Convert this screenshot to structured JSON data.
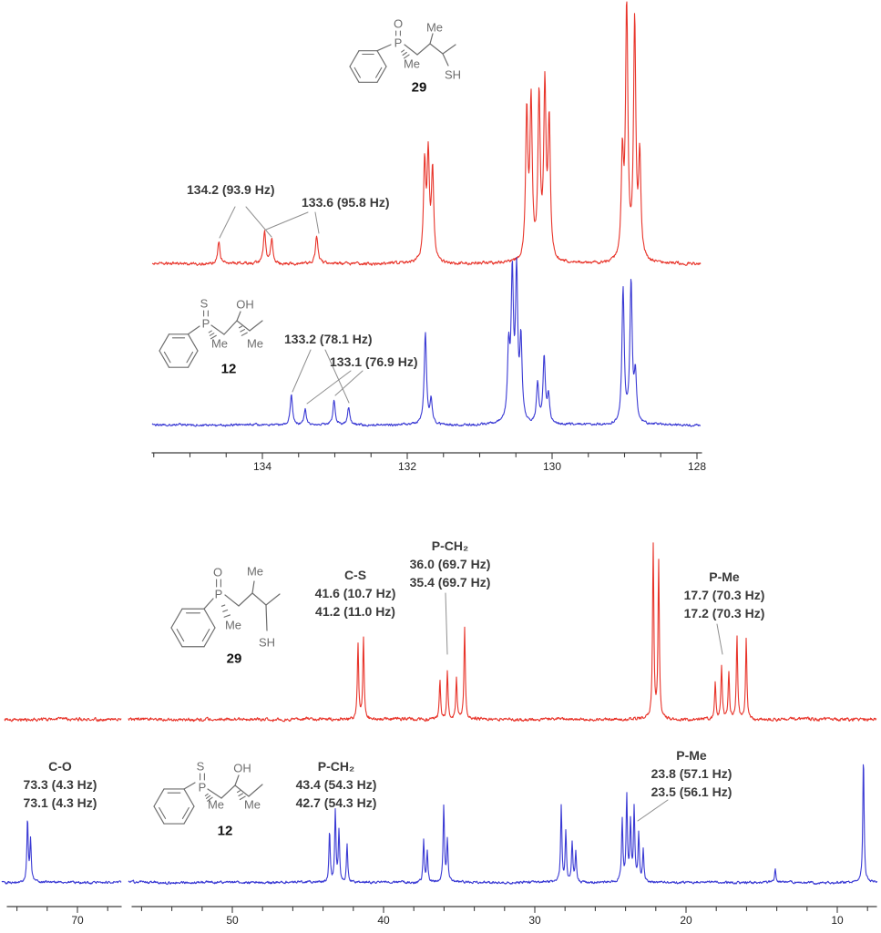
{
  "figure": {
    "background": "#ffffff",
    "kind": "13C NMR spectra overlay, aromatic and aliphatic regions"
  },
  "colors": {
    "red_series": "#e8342a",
    "blue_series": "#3a3ad4",
    "annotation_text": "#3a3a3a",
    "pointer_line": "#8f8f8f",
    "axis": "#3c3c3c",
    "structure": "#6e6e6e",
    "compound_number": "#111111"
  },
  "structures": {
    "compound29": {
      "number": "29",
      "atom_labels": {
        "o": "O",
        "me_top": "Me",
        "p": "P",
        "me_p": "Me",
        "sh": "SH"
      }
    },
    "compound12": {
      "number": "12",
      "atom_labels": {
        "s": "S",
        "oh": "OH",
        "p": "P",
        "me_p": "Me",
        "me_c": "Me"
      }
    }
  },
  "annotations": {
    "aromatic_red_1": "134.2 (93.9 Hz)",
    "aromatic_red_2": "133.6 (95.8 Hz)",
    "aromatic_blue_1": "133.2 (78.1 Hz)",
    "aromatic_blue_2": "133.1 (76.9 Hz)",
    "aliphatic_red_cs": {
      "title": "C-S",
      "line1": "41.6 (10.7 Hz)",
      "line2": "41.2 (11.0 Hz)"
    },
    "aliphatic_red_pch2": {
      "title": "P-CH₂",
      "line1": "36.0 (69.7 Hz)",
      "line2": "35.4 (69.7 Hz)"
    },
    "aliphatic_red_pme": {
      "title": "P-Me",
      "line1": "17.7 (70.3 Hz)",
      "line2": "17.2 (70.3 Hz)"
    },
    "aliphatic_blue_co": {
      "title": "C-O",
      "line1": "73.3 (4.3 Hz)",
      "line2": "73.1 (4.3 Hz)"
    },
    "aliphatic_blue_pch2": {
      "title": "P-CH₂",
      "line1": "43.4 (54.3 Hz)",
      "line2": "42.7 (54.3 Hz)"
    },
    "aliphatic_blue_pme": {
      "title": "P-Me",
      "line1": "23.8 (57.1 Hz)",
      "line2": "23.5 (56.1 Hz)"
    }
  },
  "chart_data": [
    {
      "id": "aromatic_region",
      "type": "line",
      "description": "Aromatic region overlay: compound 29 (red, top trace) vs compound 12 (blue, bottom trace)",
      "x_axis": {
        "unit": "ppm",
        "direction": "decreasing",
        "range": [
          135.5,
          127.9
        ],
        "tick_labels": [
          134,
          132,
          130,
          128
        ],
        "minor_tick_step": 0.5
      },
      "series": [
        {
          "name": "compound 29 (red)",
          "color": "#e8342a",
          "peaks": [
            [
              134.6,
              25
            ],
            [
              133.97,
              36
            ],
            [
              133.87,
              26
            ],
            [
              133.25,
              30
            ],
            [
              131.76,
              104
            ],
            [
              131.71,
              112
            ],
            [
              131.65,
              98
            ],
            [
              130.35,
              160
            ],
            [
              130.29,
              170
            ],
            [
              130.18,
              178
            ],
            [
              130.1,
              186
            ],
            [
              130.04,
              148
            ],
            [
              129.03,
              110
            ],
            [
              128.97,
              283
            ],
            [
              128.86,
              260
            ],
            [
              128.79,
              110
            ]
          ]
        },
        {
          "name": "compound 12 (blue)",
          "color": "#3a3ad4",
          "peaks": [
            [
              133.6,
              33
            ],
            [
              133.41,
              18
            ],
            [
              133.01,
              27
            ],
            [
              132.81,
              19
            ],
            [
              131.75,
              100
            ],
            [
              131.67,
              26
            ],
            [
              130.6,
              76
            ],
            [
              130.55,
              156
            ],
            [
              130.49,
              160
            ],
            [
              130.43,
              86
            ],
            [
              130.2,
              44
            ],
            [
              130.11,
              72
            ],
            [
              130.05,
              30
            ],
            [
              129.02,
              148
            ],
            [
              128.91,
              154
            ],
            [
              128.85,
              52
            ]
          ]
        }
      ]
    },
    {
      "id": "aliphatic_region",
      "type": "line",
      "description": "Aliphatic region overlay with axis break: compound 29 (red, top trace) vs compound 12 (blue, bottom trace)",
      "x_axis": {
        "unit": "ppm",
        "direction": "decreasing",
        "tick_step": 2,
        "segments": [
          {
            "range": [
              74.6,
              67.1
            ],
            "tick_labels": [
              70
            ]
          },
          {
            "range": [
              56.6,
              7.4
            ],
            "tick_labels": [
              50,
              40,
              30,
              20,
              10
            ]
          }
        ]
      },
      "series": [
        {
          "name": "compound 29 (red)",
          "color": "#e8342a",
          "peaks": [
            [
              41.69,
              84
            ],
            [
              41.33,
              90
            ],
            [
              36.27,
              44
            ],
            [
              35.78,
              52
            ],
            [
              35.18,
              45
            ],
            [
              34.64,
              102
            ],
            [
              22.17,
              190
            ],
            [
              21.81,
              172
            ],
            [
              18.07,
              40
            ],
            [
              17.65,
              58
            ],
            [
              17.17,
              50
            ],
            [
              16.63,
              90
            ],
            [
              16.02,
              88
            ]
          ]
        },
        {
          "name": "compound 12 (blue)",
          "color": "#3a3ad4",
          "peaks": [
            [
              73.3,
              70
            ],
            [
              73.1,
              46
            ],
            [
              43.57,
              55
            ],
            [
              43.19,
              78
            ],
            [
              42.95,
              56
            ],
            [
              42.41,
              42
            ],
            [
              37.35,
              46
            ],
            [
              37.11,
              34
            ],
            [
              36.02,
              84
            ],
            [
              35.78,
              46
            ],
            [
              28.25,
              83
            ],
            [
              27.95,
              54
            ],
            [
              27.53,
              44
            ],
            [
              27.29,
              34
            ],
            [
              24.22,
              68
            ],
            [
              23.92,
              93
            ],
            [
              23.67,
              64
            ],
            [
              23.43,
              80
            ],
            [
              23.13,
              53
            ],
            [
              22.83,
              36
            ],
            [
              14.1,
              16
            ],
            [
              8.27,
              138
            ]
          ]
        }
      ]
    }
  ]
}
